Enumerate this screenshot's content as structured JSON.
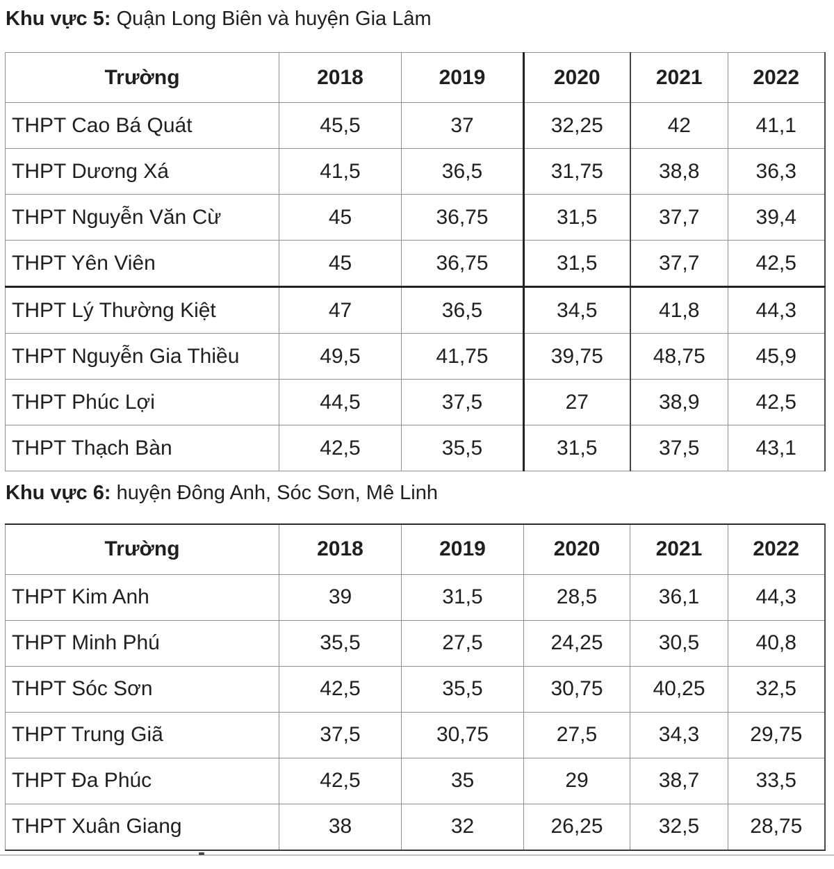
{
  "page": {
    "background": "#ffffff",
    "text_color": "#1f1f1f"
  },
  "colors": {
    "border_thin": "#8f8f8f",
    "border_thick": "#222222"
  },
  "sections": [
    {
      "title": {
        "prefix": "Khu vực 5:",
        "rest": " Quận Long Biên và huyện Gia Lâm"
      },
      "table": {
        "columns": [
          "Trường",
          "2018",
          "2019",
          "2020",
          "2021",
          "2022"
        ],
        "rows": [
          [
            "THPT Cao Bá Quát",
            "45,5",
            "37",
            "32,25",
            "42",
            "41,1"
          ],
          [
            "THPT Dương Xá",
            "41,5",
            "36,5",
            "31,75",
            "38,8",
            "36,3"
          ],
          [
            "THPT Nguyễn Văn Cừ",
            "45",
            "36,75",
            "31,5",
            "37,7",
            "39,4"
          ],
          [
            "THPT Yên Viên",
            "45",
            "36,75",
            "31,5",
            "37,7",
            "42,5"
          ],
          [
            "THPT Lý Thường Kiệt",
            "47",
            "36,5",
            "34,5",
            "41,8",
            "44,3"
          ],
          [
            "THPT Nguyễn Gia Thiều",
            "49,5",
            "41,75",
            "39,75",
            "48,75",
            "45,9"
          ],
          [
            "THPT Phúc Lợi",
            "44,5",
            "37,5",
            "27",
            "38,9",
            "42,5"
          ],
          [
            "THPT Thạch Bàn",
            "42,5",
            "35,5",
            "31,5",
            "37,5",
            "43,1"
          ]
        ]
      }
    },
    {
      "title": {
        "prefix": "Khu vực 6:",
        "rest": " huyện Đông Anh, Sóc Sơn, Mê Linh"
      },
      "table": {
        "columns": [
          "Trường",
          "2018",
          "2019",
          "2020",
          "2021",
          "2022"
        ],
        "rows": [
          [
            "THPT Kim Anh",
            "39",
            "31,5",
            "28,5",
            "36,1",
            "44,3"
          ],
          [
            "THPT Minh Phú",
            "35,5",
            "27,5",
            "24,25",
            "30,5",
            "40,8"
          ],
          [
            "THPT Sóc Sơn",
            "42,5",
            "35,5",
            "30,75",
            "40,25",
            "32,5"
          ],
          [
            "THPT Trung Giã",
            "37,5",
            "30,75",
            "27,5",
            "34,3",
            "29,75"
          ],
          [
            "THPT Đa Phúc",
            "42,5",
            "35",
            "29",
            "38,7",
            "33,5"
          ],
          [
            "THPT Xuân Giang",
            "38",
            "32",
            "26,25",
            "32,5",
            "28,75"
          ]
        ]
      }
    }
  ]
}
